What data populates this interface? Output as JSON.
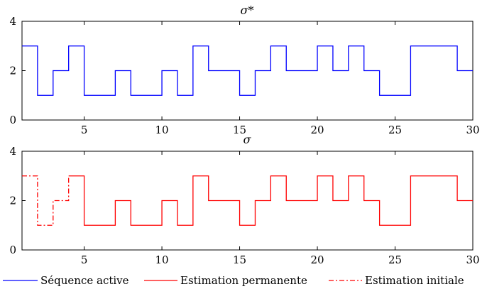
{
  "chart_data": [
    {
      "type": "line",
      "title": "σ*",
      "xlabel": "",
      "ylabel": "",
      "xlim": [
        1,
        30
      ],
      "ylim": [
        0,
        4
      ],
      "xticks": [
        5,
        10,
        15,
        20,
        25,
        30
      ],
      "yticks": [
        0,
        2,
        4
      ],
      "grid": false,
      "series": [
        {
          "name": "Séquence active",
          "color": "#0000ff",
          "style": "solid",
          "step": "post",
          "x": [
            1,
            2,
            3,
            4,
            5,
            6,
            7,
            8,
            9,
            10,
            11,
            12,
            13,
            14,
            15,
            16,
            17,
            18,
            19,
            20,
            21,
            22,
            23,
            24,
            25,
            26,
            27,
            28,
            29,
            30
          ],
          "y": [
            3,
            1,
            2,
            3,
            1,
            1,
            2,
            1,
            1,
            2,
            1,
            3,
            2,
            2,
            1,
            2,
            3,
            2,
            2,
            3,
            2,
            3,
            2,
            1,
            1,
            3,
            3,
            3,
            2,
            2
          ]
        }
      ]
    },
    {
      "type": "line",
      "title": "σ",
      "xlabel": "",
      "ylabel": "",
      "xlim": [
        1,
        30
      ],
      "ylim": [
        0,
        4
      ],
      "xticks": [
        5,
        10,
        15,
        20,
        25,
        30
      ],
      "yticks": [
        0,
        2,
        4
      ],
      "grid": false,
      "series": [
        {
          "name": "Estimation permanente",
          "color": "#ff0000",
          "style": "solid",
          "step": "post",
          "x": [
            4,
            5,
            6,
            7,
            8,
            9,
            10,
            11,
            12,
            13,
            14,
            15,
            16,
            17,
            18,
            19,
            20,
            21,
            22,
            23,
            24,
            25,
            26,
            27,
            28,
            29,
            30
          ],
          "y": [
            3,
            1,
            1,
            2,
            1,
            1,
            2,
            1,
            3,
            2,
            2,
            1,
            2,
            3,
            2,
            2,
            3,
            2,
            3,
            2,
            1,
            1,
            3,
            3,
            3,
            2,
            2
          ]
        },
        {
          "name": "Estimation initiale",
          "color": "#ff0000",
          "style": "dashdot",
          "step": "post",
          "x": [
            1,
            2,
            3,
            4
          ],
          "y": [
            3,
            1,
            2,
            3
          ]
        }
      ]
    }
  ],
  "legend": {
    "position": "bottom",
    "entries": [
      {
        "label": "Séquence active",
        "color": "#0000ff",
        "style": "solid"
      },
      {
        "label": "Estimation permanente",
        "color": "#ff0000",
        "style": "solid"
      },
      {
        "label": "Estimation initiale",
        "color": "#ff0000",
        "style": "dashdot"
      }
    ]
  }
}
